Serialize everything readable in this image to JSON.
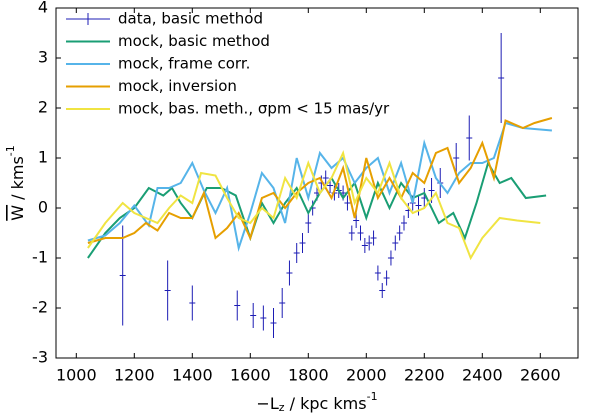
{
  "chart_data": {
    "type": "line",
    "xlabel": [
      "−L",
      "z",
      " / kpc kms",
      "-1"
    ],
    "ylabel": [
      "W",
      " / kms",
      "-1"
    ],
    "xlim": [
      930,
      2730
    ],
    "ylim": [
      -3,
      4
    ],
    "xticks": [
      1000,
      1200,
      1400,
      1600,
      1800,
      2000,
      2200,
      2400,
      2600
    ],
    "yticks": [
      -3,
      -2,
      -1,
      0,
      1,
      2,
      3,
      4
    ],
    "legend": "upper left",
    "series": [
      {
        "name": "data, basic method",
        "color": "#1c1cb4",
        "x": [
          1160,
          1315,
          1400,
          1555,
          1610,
          1645,
          1680,
          1710,
          1735,
          1760,
          1780,
          1800,
          1815,
          1830,
          1845,
          1860,
          1875,
          1890,
          1905,
          1920,
          1935,
          1950,
          1965,
          1980,
          1995,
          2010,
          2025,
          2040,
          2055,
          2070,
          2085,
          2100,
          2115,
          2130,
          2145,
          2160,
          2180,
          2200,
          2225,
          2255,
          2310,
          2355,
          2465
        ],
        "values": [
          -1.35,
          -1.65,
          -1.9,
          -1.95,
          -2.15,
          -2.2,
          -2.3,
          -1.9,
          -1.3,
          -0.9,
          -0.7,
          -0.3,
          0,
          0.3,
          0.5,
          0.6,
          0.45,
          0.3,
          0.35,
          0.3,
          0.1,
          -0.5,
          -0.25,
          -0.5,
          -0.75,
          -0.7,
          -0.6,
          -1.3,
          -1.65,
          -1.4,
          -1.0,
          -0.7,
          -0.5,
          -0.3,
          -0.05,
          0.1,
          0.05,
          0.2,
          0.35,
          0.5,
          1.0,
          1.4,
          2.6
        ],
        "errors": [
          1.0,
          0.6,
          0.35,
          0.3,
          0.25,
          0.25,
          0.3,
          0.3,
          0.25,
          0.2,
          0.2,
          0.2,
          0.15,
          0.15,
          0.15,
          0.15,
          0.15,
          0.15,
          0.15,
          0.15,
          0.15,
          0.15,
          0.15,
          0.15,
          0.15,
          0.15,
          0.15,
          0.15,
          0.15,
          0.15,
          0.15,
          0.15,
          0.15,
          0.15,
          0.15,
          0.15,
          0.2,
          0.2,
          0.25,
          0.3,
          0.3,
          0.45,
          0.9
        ]
      },
      {
        "name": "mock, basic method",
        "color": "#1a9e74",
        "x": [
          1040,
          1100,
          1150,
          1200,
          1250,
          1300,
          1330,
          1360,
          1400,
          1450,
          1500,
          1550,
          1600,
          1640,
          1680,
          1720,
          1760,
          1800,
          1840,
          1880,
          1920,
          1960,
          2000,
          2040,
          2080,
          2120,
          2160,
          2200,
          2250,
          2300,
          2340,
          2380,
          2420,
          2460,
          2500,
          2550,
          2620
        ],
        "values": [
          -1.0,
          -0.5,
          -0.2,
          0,
          0.4,
          0.25,
          0.4,
          0.1,
          -0.2,
          0.4,
          0.4,
          0.25,
          -0.6,
          0.1,
          -0.3,
          0.1,
          0.4,
          -0.1,
          0.3,
          0.6,
          0.2,
          0.5,
          -0.2,
          0.5,
          0,
          0.5,
          0.2,
          0.3,
          -0.3,
          -0.1,
          -0.6,
          0.1,
          0.9,
          0.5,
          0.6,
          0.2,
          0.25
        ]
      },
      {
        "name": "mock, frame corr.",
        "color": "#56b4e9",
        "x": [
          1040,
          1100,
          1150,
          1200,
          1250,
          1280,
          1320,
          1360,
          1400,
          1440,
          1480,
          1520,
          1560,
          1600,
          1640,
          1680,
          1720,
          1760,
          1800,
          1840,
          1880,
          1920,
          1960,
          2000,
          2040,
          2080,
          2120,
          2160,
          2200,
          2240,
          2280,
          2320,
          2360,
          2400,
          2440,
          2480,
          2540,
          2640
        ],
        "values": [
          -0.65,
          -0.55,
          -0.3,
          0.05,
          -0.35,
          0.4,
          0.4,
          0.5,
          0.9,
          0.35,
          -0.1,
          0.4,
          -0.8,
          -0.1,
          0.7,
          0.4,
          -0.3,
          1.0,
          0.2,
          1.1,
          0.8,
          1.0,
          0.5,
          0.8,
          1.0,
          0.3,
          0.9,
          0.1,
          1.3,
          0.6,
          0.3,
          0.7,
          0.9,
          0.9,
          1.0,
          1.7,
          1.6,
          1.55
        ]
      },
      {
        "name": "mock, inversion",
        "color": "#e69f00",
        "x": [
          1040,
          1100,
          1160,
          1200,
          1240,
          1280,
          1320,
          1360,
          1400,
          1440,
          1480,
          1520,
          1560,
          1600,
          1640,
          1680,
          1720,
          1760,
          1800,
          1840,
          1880,
          1920,
          1960,
          2000,
          2040,
          2080,
          2120,
          2160,
          2200,
          2240,
          2280,
          2320,
          2360,
          2400,
          2440,
          2480,
          2540,
          2580,
          2640
        ],
        "values": [
          -0.7,
          -0.6,
          -0.6,
          -0.5,
          -0.3,
          -0.45,
          -0.1,
          -0.2,
          -0.2,
          0.3,
          -0.6,
          -0.4,
          -0.1,
          -0.6,
          0.2,
          0.3,
          0.0,
          0.3,
          0.5,
          0.6,
          0.2,
          0.8,
          -0.2,
          1.0,
          0.2,
          0.6,
          0.2,
          0.7,
          0.5,
          1.1,
          1.2,
          0.5,
          0.8,
          1.3,
          0.6,
          1.75,
          1.6,
          1.7,
          1.8
        ]
      },
      {
        "name": "mock, bas. meth., σpm < 15 mas/yr",
        "color": "#f0e442",
        "x": [
          1040,
          1100,
          1160,
          1200,
          1240,
          1280,
          1320,
          1360,
          1400,
          1430,
          1480,
          1520,
          1560,
          1600,
          1640,
          1680,
          1720,
          1760,
          1800,
          1840,
          1880,
          1920,
          1960,
          2000,
          2040,
          2080,
          2120,
          2160,
          2200,
          2240,
          2280,
          2320,
          2360,
          2400,
          2460,
          2520,
          2600
        ],
        "values": [
          -0.8,
          -0.3,
          0.1,
          -0.1,
          -0.2,
          -0.3,
          0.0,
          0.25,
          0.1,
          0.7,
          0.65,
          0.2,
          -0.2,
          -0.3,
          0.0,
          -0.2,
          0.6,
          0.2,
          0.9,
          0.3,
          0.6,
          1.1,
          0.1,
          0.6,
          0.3,
          0.9,
          0.2,
          -0.1,
          0.0,
          0.3,
          -0.3,
          -0.4,
          -1.0,
          -0.6,
          -0.2,
          -0.25,
          -0.3
        ]
      }
    ]
  }
}
